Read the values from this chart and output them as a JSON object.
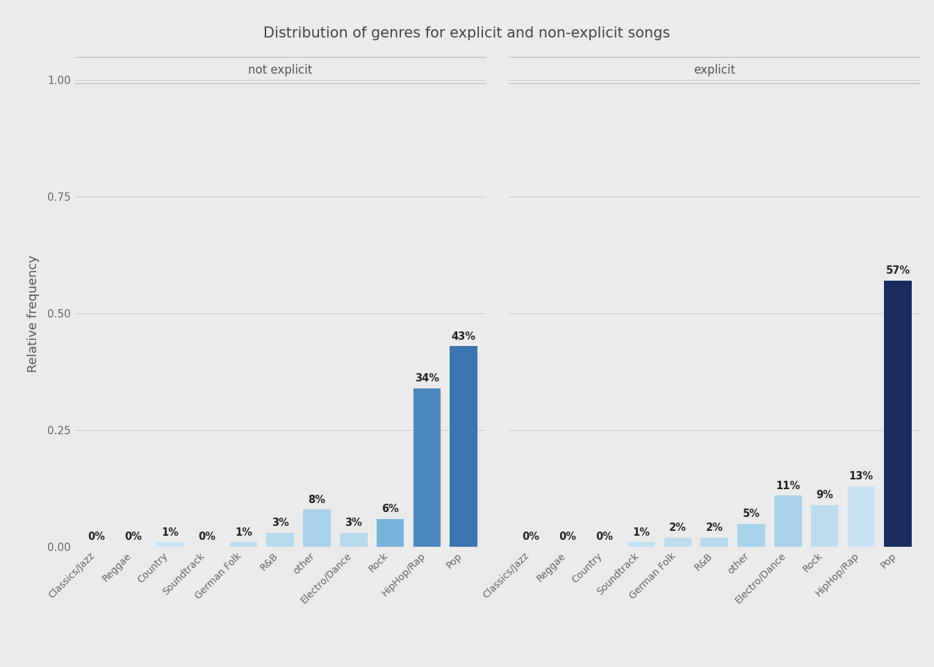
{
  "title": "Distribution of genres for explicit and non-explicit songs",
  "ylabel": "Relative frequency",
  "background_color": "#ebebeb",
  "panel_bg": "#ebebeb",
  "facets": [
    "not explicit",
    "explicit"
  ],
  "categories": [
    "Classics/Jazz",
    "Reggae",
    "Country",
    "Soundtrack",
    "German Folk",
    "R&B",
    "other",
    "Electro/Dance",
    "Rock",
    "HipHop/Rap",
    "Pop"
  ],
  "not_explicit_values": [
    0.0,
    0.0,
    0.01,
    0.0,
    0.01,
    0.03,
    0.08,
    0.03,
    0.06,
    0.34,
    0.43
  ],
  "explicit_values": [
    0.0,
    0.0,
    0.0,
    0.01,
    0.02,
    0.02,
    0.05,
    0.11,
    0.09,
    0.13,
    0.57
  ],
  "not_explicit_labels": [
    "0%",
    "0%",
    "1%",
    "0%",
    "1%",
    "3%",
    "8%",
    "3%",
    "6%",
    "34%",
    "43%"
  ],
  "explicit_labels": [
    "0%",
    "0%",
    "0%",
    "1%",
    "2%",
    "2%",
    "5%",
    "11%",
    "9%",
    "13%",
    "57%"
  ],
  "not_explicit_colors": [
    "#d6e9f7",
    "#d0e6f5",
    "#cae3f3",
    "#c4e0f1",
    "#bdddef",
    "#b7daed",
    "#a8d3ea",
    "#b7daed",
    "#7ab3d9",
    "#4d87c0",
    "#3d75b0"
  ],
  "explicit_colors": [
    "#d6e9f7",
    "#d0e6f5",
    "#cae3f3",
    "#c4e0f1",
    "#bdddef",
    "#b7daed",
    "#a8d3ea",
    "#a8d3ea",
    "#bdddef",
    "#cae3f3",
    "#1a2b5e"
  ],
  "ylim": [
    0,
    1.0
  ],
  "yticks": [
    0.0,
    0.25,
    0.5,
    0.75,
    1.0
  ],
  "facet_label_color": "#555555",
  "title_color": "#444444",
  "axis_label_color": "#555555",
  "tick_label_color": "#666666",
  "bar_label_color": "#222222",
  "grid_color": "#cccccc",
  "facet_border_color": "#bbbbbb"
}
